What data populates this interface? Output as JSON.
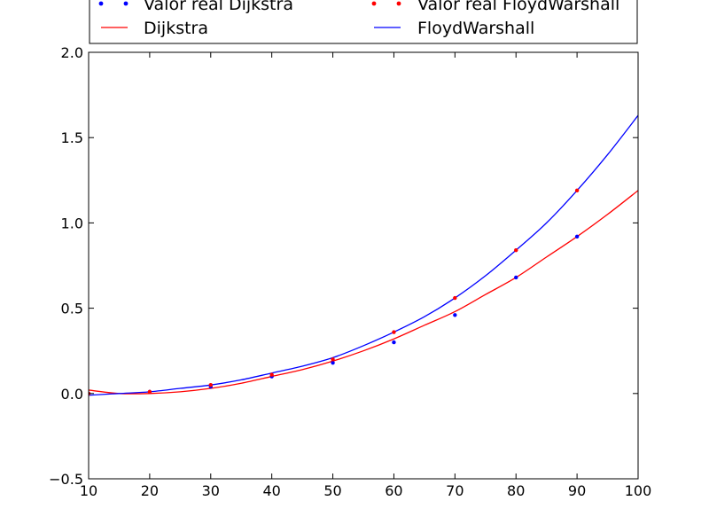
{
  "chart_data": {
    "type": "line",
    "title": "",
    "xlabel": "",
    "ylabel": "",
    "xlim": [
      10,
      100
    ],
    "ylim": [
      -0.5,
      2.0
    ],
    "grid": false,
    "x_ticks": [
      10,
      20,
      30,
      40,
      50,
      60,
      70,
      80,
      90,
      100
    ],
    "x_tick_labels": [
      "10",
      "20",
      "30",
      "40",
      "50",
      "60",
      "70",
      "80",
      "90",
      "100"
    ],
    "y_ticks": [
      -0.5,
      0.0,
      0.5,
      1.0,
      1.5,
      2.0
    ],
    "y_tick_labels": [
      "−0.5",
      "0.0",
      "0.5",
      "1.0",
      "1.5",
      "2.0"
    ],
    "legend": {
      "placement": "top, above plot, two columns",
      "entries": [
        {
          "label": "Valor real Dijkstra",
          "style": "dots",
          "color": "#0000ff"
        },
        {
          "label": "Valor real FloydWarshall",
          "style": "dots",
          "color": "#ff0000"
        },
        {
          "label": "Dijkstra",
          "style": "line",
          "color": "#ff0000"
        },
        {
          "label": "FloydWarshall",
          "style": "line",
          "color": "#0000ff"
        }
      ]
    },
    "series": [
      {
        "name": "Valor real Dijkstra",
        "kind": "scatter",
        "color": "#0000ff",
        "x": [
          10,
          20,
          30,
          40,
          50,
          60,
          70,
          80,
          90
        ],
        "y": [
          0.0,
          0.01,
          0.04,
          0.1,
          0.18,
          0.3,
          0.46,
          0.68,
          0.92
        ]
      },
      {
        "name": "Valor real FloydWarshall",
        "kind": "scatter",
        "color": "#ff0000",
        "x": [
          10,
          20,
          30,
          40,
          50,
          60,
          70,
          80,
          90
        ],
        "y": [
          0.0,
          0.01,
          0.05,
          0.11,
          0.2,
          0.36,
          0.56,
          0.84,
          1.19
        ]
      },
      {
        "name": "Dijkstra",
        "kind": "line",
        "color": "#ff0000",
        "x": [
          10,
          15,
          20,
          25,
          30,
          35,
          40,
          45,
          50,
          55,
          60,
          65,
          70,
          75,
          80,
          85,
          90,
          95,
          100
        ],
        "y": [
          0.02,
          0.0,
          0.0,
          0.01,
          0.03,
          0.06,
          0.1,
          0.14,
          0.19,
          0.25,
          0.32,
          0.4,
          0.48,
          0.58,
          0.68,
          0.8,
          0.92,
          1.05,
          1.19
        ]
      },
      {
        "name": "FloydWarshall",
        "kind": "line",
        "color": "#0000ff",
        "x": [
          10,
          15,
          20,
          25,
          30,
          35,
          40,
          45,
          50,
          55,
          60,
          65,
          70,
          75,
          80,
          85,
          90,
          95,
          100
        ],
        "y": [
          -0.01,
          0.0,
          0.01,
          0.03,
          0.05,
          0.08,
          0.12,
          0.16,
          0.21,
          0.28,
          0.36,
          0.45,
          0.56,
          0.69,
          0.84,
          1.0,
          1.19,
          1.4,
          1.63
        ]
      }
    ]
  }
}
